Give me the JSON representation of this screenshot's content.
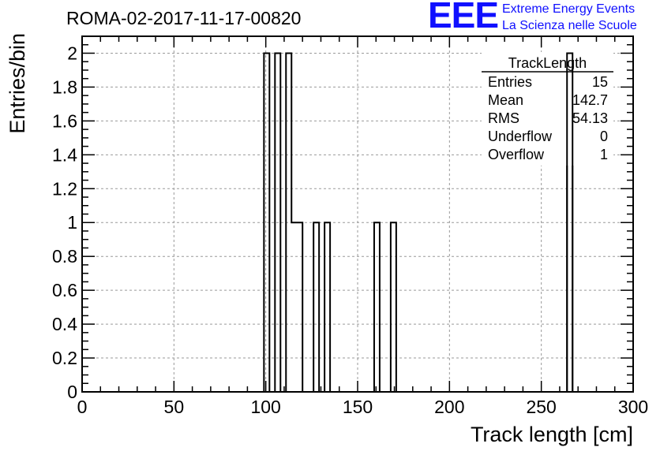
{
  "header": {
    "title": "ROMA-02-2017-11-17-00820",
    "logo_text": "EEE",
    "logo_line1": "Extreme Energy Events",
    "logo_line2": "La Scienza nelle Scuole"
  },
  "colors": {
    "logo": "#1010ff",
    "line": "#000000",
    "grid": "#9a9a9a"
  },
  "stats_box": {
    "name": "TrackLength",
    "rows": [
      {
        "label": "Entries",
        "value": "15"
      },
      {
        "label": "Mean",
        "value": "142.7"
      },
      {
        "label": "RMS",
        "value": "54.13"
      },
      {
        "label": "Underflow",
        "value": "0"
      },
      {
        "label": "Overflow",
        "value": "1"
      }
    ]
  },
  "chart_data": {
    "type": "histogram",
    "xlabel": "Track length [cm]",
    "ylabel": "Entries/bin",
    "xlim": [
      0,
      300
    ],
    "ylim": [
      0,
      2.1
    ],
    "xticks": [
      0,
      50,
      100,
      150,
      200,
      250,
      300
    ],
    "xtick_labels": [
      "0",
      "50",
      "100",
      "150",
      "200",
      "250",
      "300"
    ],
    "yticks": [
      0,
      0.2,
      0.4,
      0.6,
      0.8,
      1,
      1.2,
      1.4,
      1.6,
      1.8,
      2
    ],
    "ytick_labels": [
      "0",
      "0.2",
      "0.4",
      "0.6",
      "0.8",
      "1",
      "1.2",
      "1.4",
      "1.6",
      "1.8",
      "2"
    ],
    "grid": true,
    "bin_width": 3,
    "bins": [
      {
        "x": 99,
        "value": 2
      },
      {
        "x": 105,
        "value": 2
      },
      {
        "x": 111,
        "value": 2
      },
      {
        "x": 114,
        "value": 1
      },
      {
        "x": 117,
        "value": 1
      },
      {
        "x": 126,
        "value": 1
      },
      {
        "x": 132,
        "value": 1
      },
      {
        "x": 159,
        "value": 1
      },
      {
        "x": 168,
        "value": 1
      },
      {
        "x": 264,
        "value": 2
      }
    ]
  }
}
